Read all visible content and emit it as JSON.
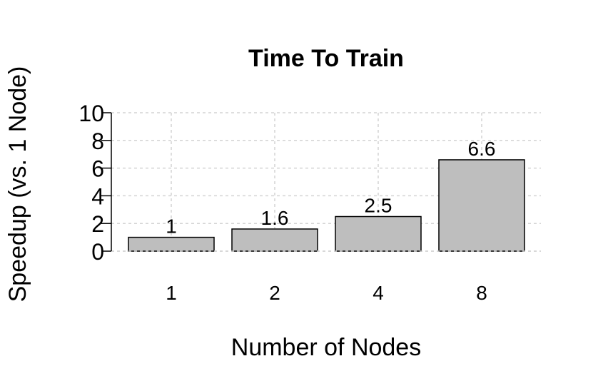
{
  "chart_data": {
    "type": "bar",
    "title": "Time To Train",
    "xlabel": "Number of Nodes",
    "ylabel": "Speedup (vs. 1 Node)",
    "categories": [
      "1",
      "2",
      "4",
      "8"
    ],
    "values": [
      1,
      1.6,
      2.5,
      6.6
    ],
    "data_labels": [
      "1",
      "1.6",
      "2.5",
      "6.6"
    ],
    "ylim": [
      0,
      10
    ],
    "yticks": [
      0,
      2,
      4,
      6,
      8,
      10
    ],
    "ytick_labels": [
      "0",
      "2",
      "4",
      "6",
      "8",
      "10"
    ],
    "grid": true,
    "bar_color": "#bebebe",
    "bar_edge_color": "#000000",
    "grid_color": "#d3d3d3"
  }
}
